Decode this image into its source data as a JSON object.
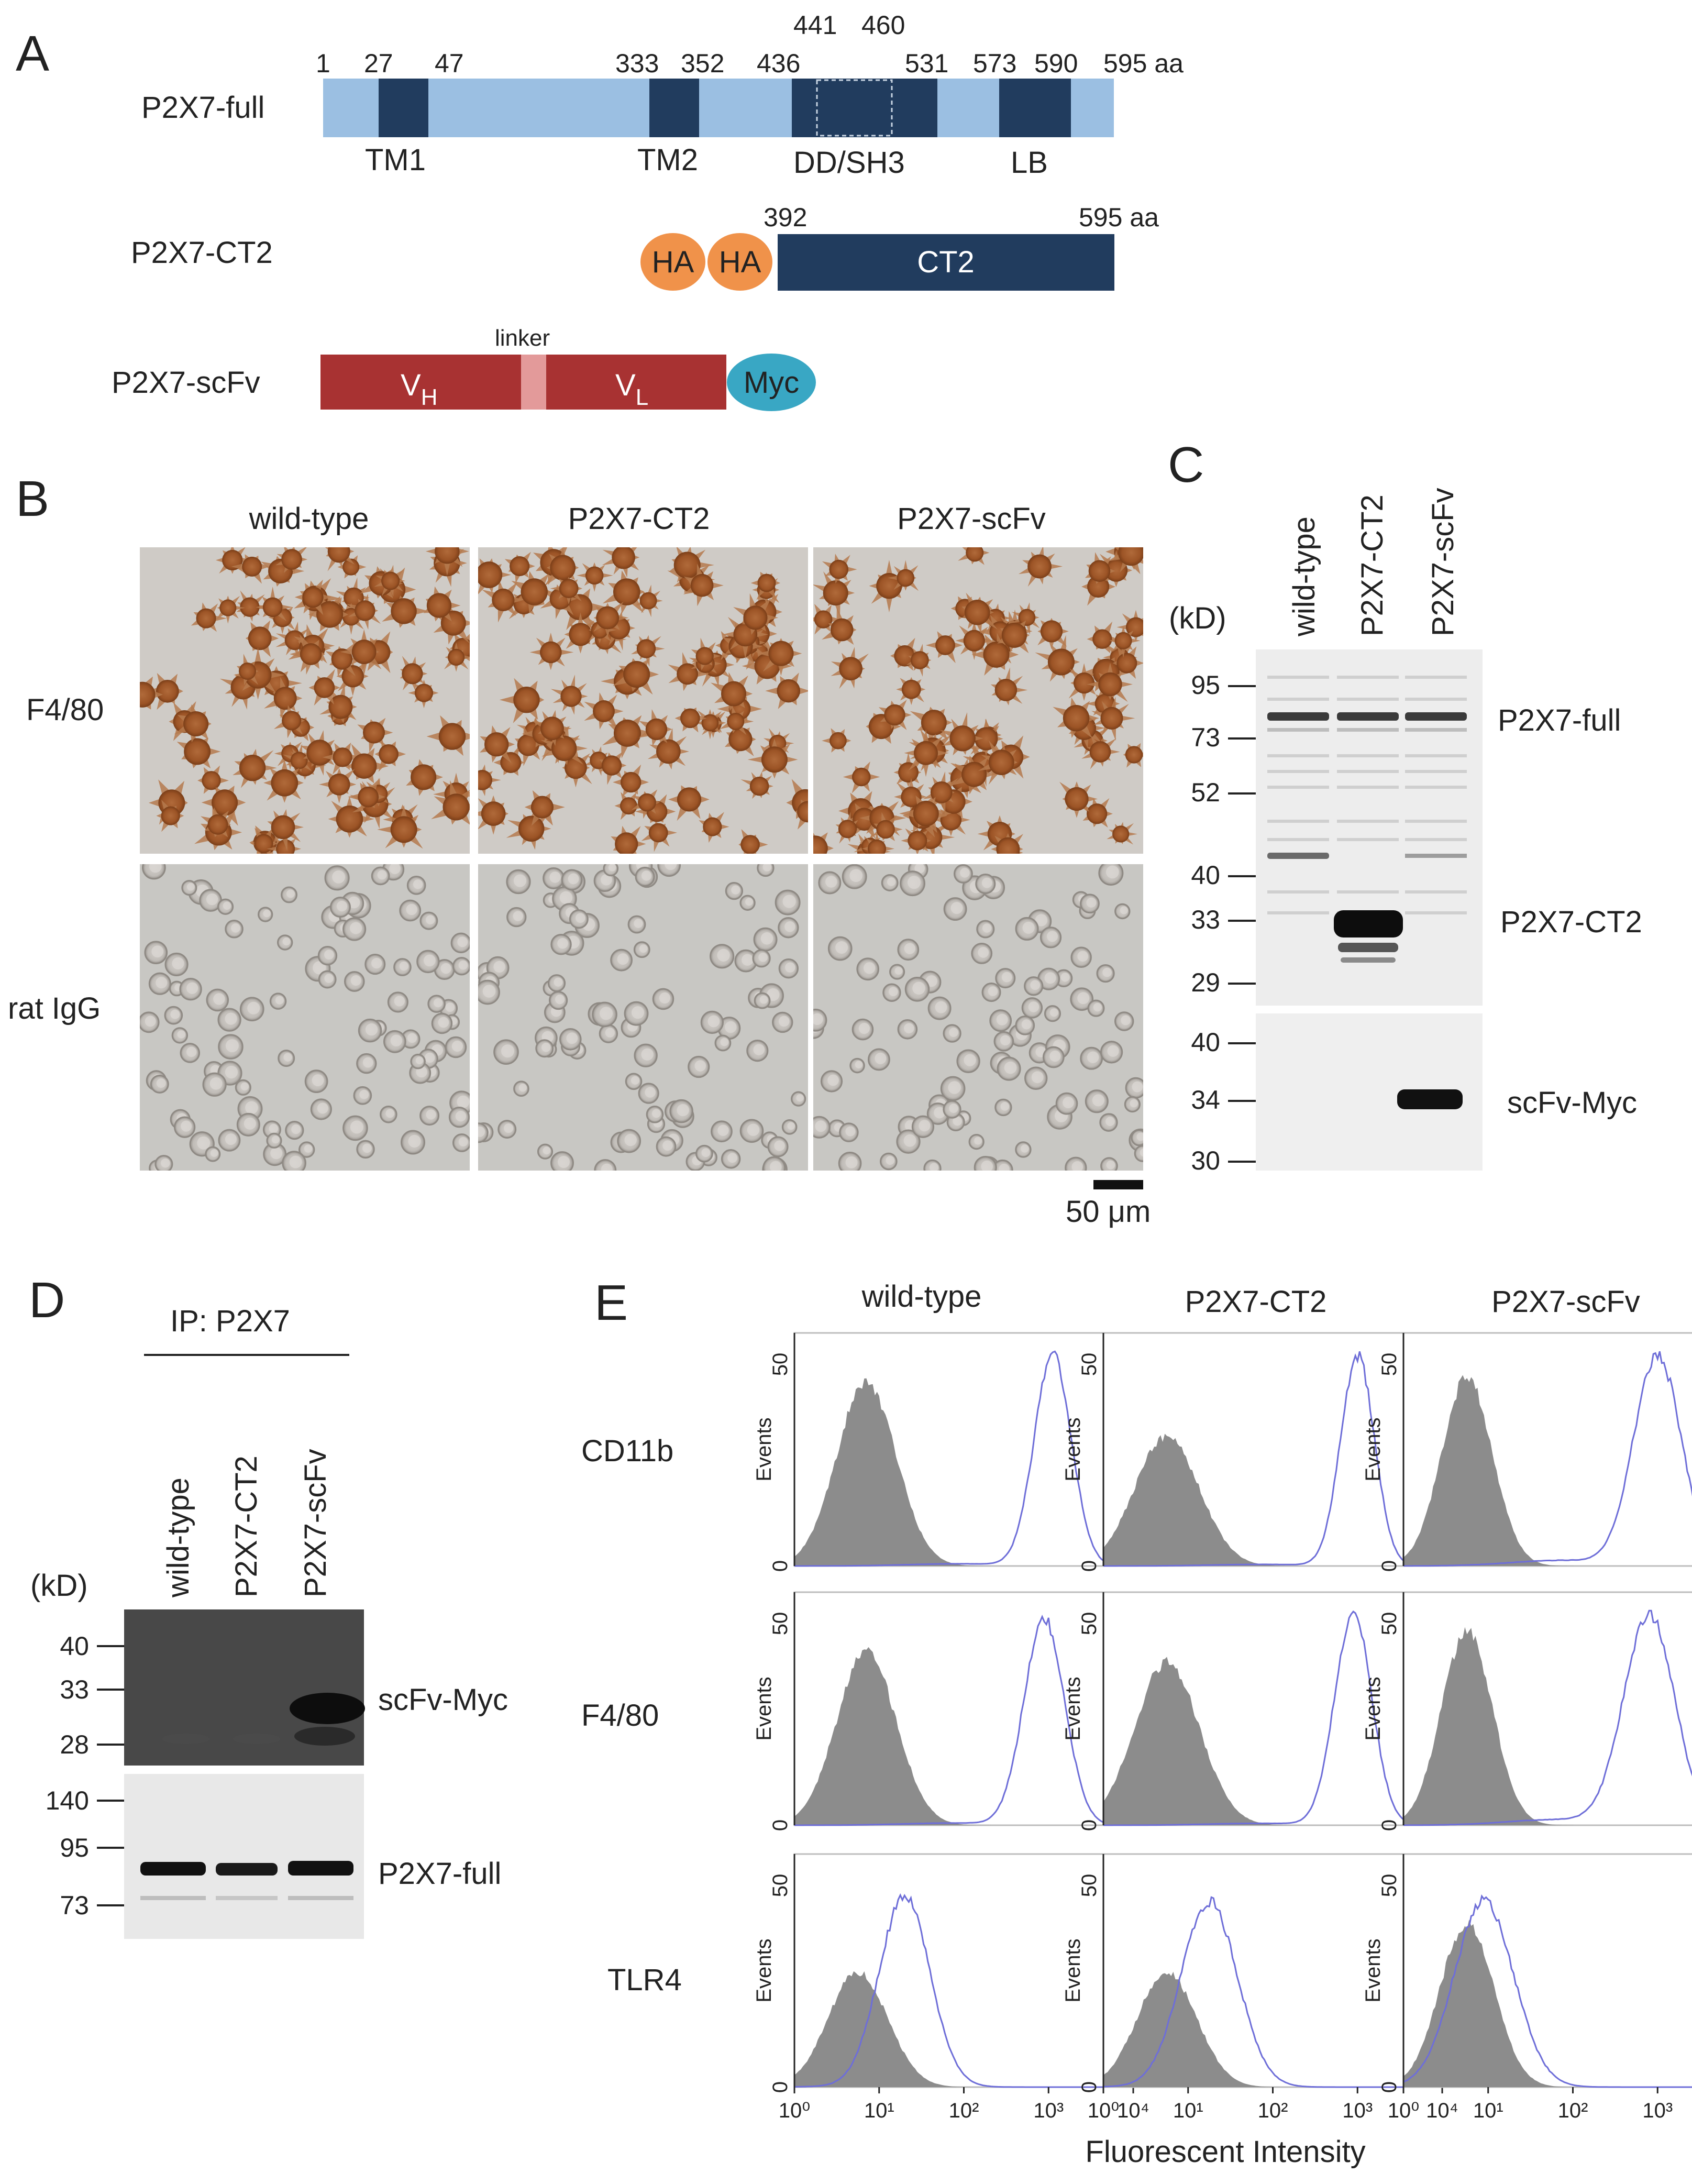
{
  "panels": {
    "a": "A",
    "b": "B",
    "c": "C",
    "d": "D",
    "e": "E"
  },
  "domain_a": {
    "full_label": "P2X7-full",
    "positions": [
      "1",
      "27",
      "47",
      "333",
      "352",
      "436",
      "441",
      "460",
      "531",
      "573",
      "590",
      "595 aa"
    ],
    "domains": [
      "TM1",
      "TM2",
      "DD/SH3",
      "LB"
    ],
    "ct2_label": "P2X7-CT2",
    "ct2_tags": [
      "HA",
      "HA"
    ],
    "ct2_box": "CT2",
    "ct2_start": "392",
    "ct2_end": "595 aa",
    "scfv_label": "P2X7-scFv",
    "linker": "linker",
    "vh": "V",
    "vh_sub": "H",
    "vl": "V",
    "vl_sub": "L",
    "myc": "Myc"
  },
  "panel_b": {
    "columns": [
      "wild-type",
      "P2X7-CT2",
      "P2X7-scFv"
    ],
    "rows": [
      "F4/80",
      "rat IgG"
    ],
    "scale_bar": "50 μm"
  },
  "panel_c": {
    "lanes": [
      "wild-type",
      "P2X7-CT2",
      "P2X7-scFv"
    ],
    "unit": "(kD)",
    "top_markers": [
      "95",
      "73",
      "52",
      "40",
      "33",
      "29"
    ],
    "bottom_markers": [
      "40",
      "34",
      "30"
    ],
    "bands": [
      "P2X7-full",
      "P2X7-CT2",
      "scFv-Myc"
    ]
  },
  "panel_d": {
    "ip_label": "IP:  P2X7",
    "lanes": [
      "wild-type",
      "P2X7-CT2",
      "P2X7-scFv"
    ],
    "unit": "(kD)",
    "top_markers": [
      "40",
      "33",
      "28"
    ],
    "bottom_markers": [
      "140",
      "95",
      "73"
    ],
    "bands": [
      "scFv-Myc",
      "P2X7-full"
    ]
  },
  "panel_e": {
    "columns": [
      "wild-type",
      "P2X7-CT2",
      "P2X7-scFv"
    ],
    "rows": [
      "CD11b",
      "F4/80",
      "TLR4"
    ],
    "y_axis": "Events",
    "y_ticks": [
      "0",
      "50"
    ],
    "x_ticks": [
      "10⁰",
      "10¹",
      "10²",
      "10³",
      "10⁴"
    ],
    "x_axis": "Fluorescent Intensity",
    "colors": {
      "isotype_fill": "#8c8c8c",
      "stain_line": "#6e6ed8"
    }
  }
}
